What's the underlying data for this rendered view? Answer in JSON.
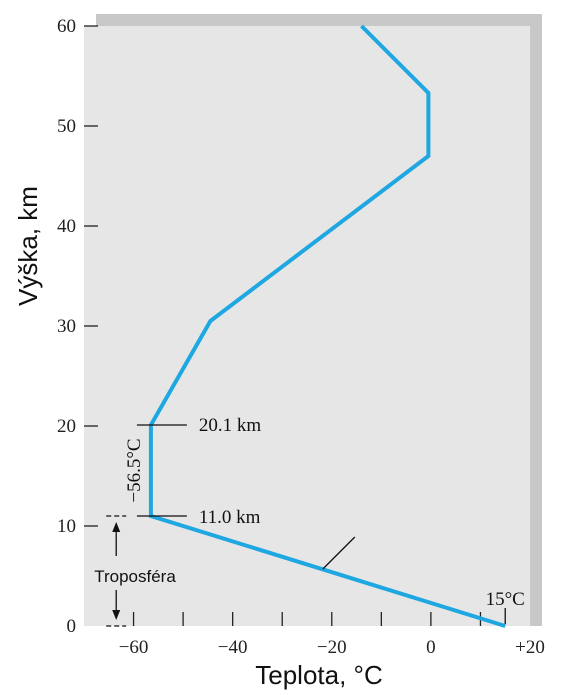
{
  "chart_data": {
    "type": "line",
    "xlabel": "Teplota, °C",
    "ylabel": "Výška, km",
    "xlim": [
      -70,
      20
    ],
    "ylim": [
      0,
      60
    ],
    "x_tick_labels": [
      {
        "value": -60,
        "label": "−60"
      },
      {
        "value": -40,
        "label": "−40"
      },
      {
        "value": -20,
        "label": "−20"
      },
      {
        "value": 0,
        "label": "0"
      },
      {
        "value": 20,
        "label": "+20"
      }
    ],
    "y_tick_labels": [
      {
        "value": 0,
        "label": "0"
      },
      {
        "value": 10,
        "label": "10"
      },
      {
        "value": 20,
        "label": "20"
      },
      {
        "value": 30,
        "label": "30"
      },
      {
        "value": 40,
        "label": "40"
      },
      {
        "value": 50,
        "label": "50"
      },
      {
        "value": 60,
        "label": "60"
      }
    ],
    "series": [
      {
        "color": "#1ea7e1",
        "points": [
          {
            "x": 15,
            "y": 0
          },
          {
            "x": -56.5,
            "y": 11.0
          },
          {
            "x": -56.5,
            "y": 20.1
          },
          {
            "x": -44.5,
            "y": 30.5
          },
          {
            "x": -0.5,
            "y": 47
          },
          {
            "x": -0.5,
            "y": 53.3
          },
          {
            "x": -14,
            "y": 60
          }
        ]
      }
    ],
    "annotations": {
      "surface_temp": "15°C",
      "tropopause_height": "11.0 km",
      "stratopause_lower": "20.1 km",
      "isothermal_temp": "−56.5°C",
      "troposphere_label": "Troposféra"
    },
    "colors": {
      "plot_background": "#e6e6e6",
      "plot_shadow": "#c8c8c8",
      "line": "#1ea7e1"
    }
  }
}
